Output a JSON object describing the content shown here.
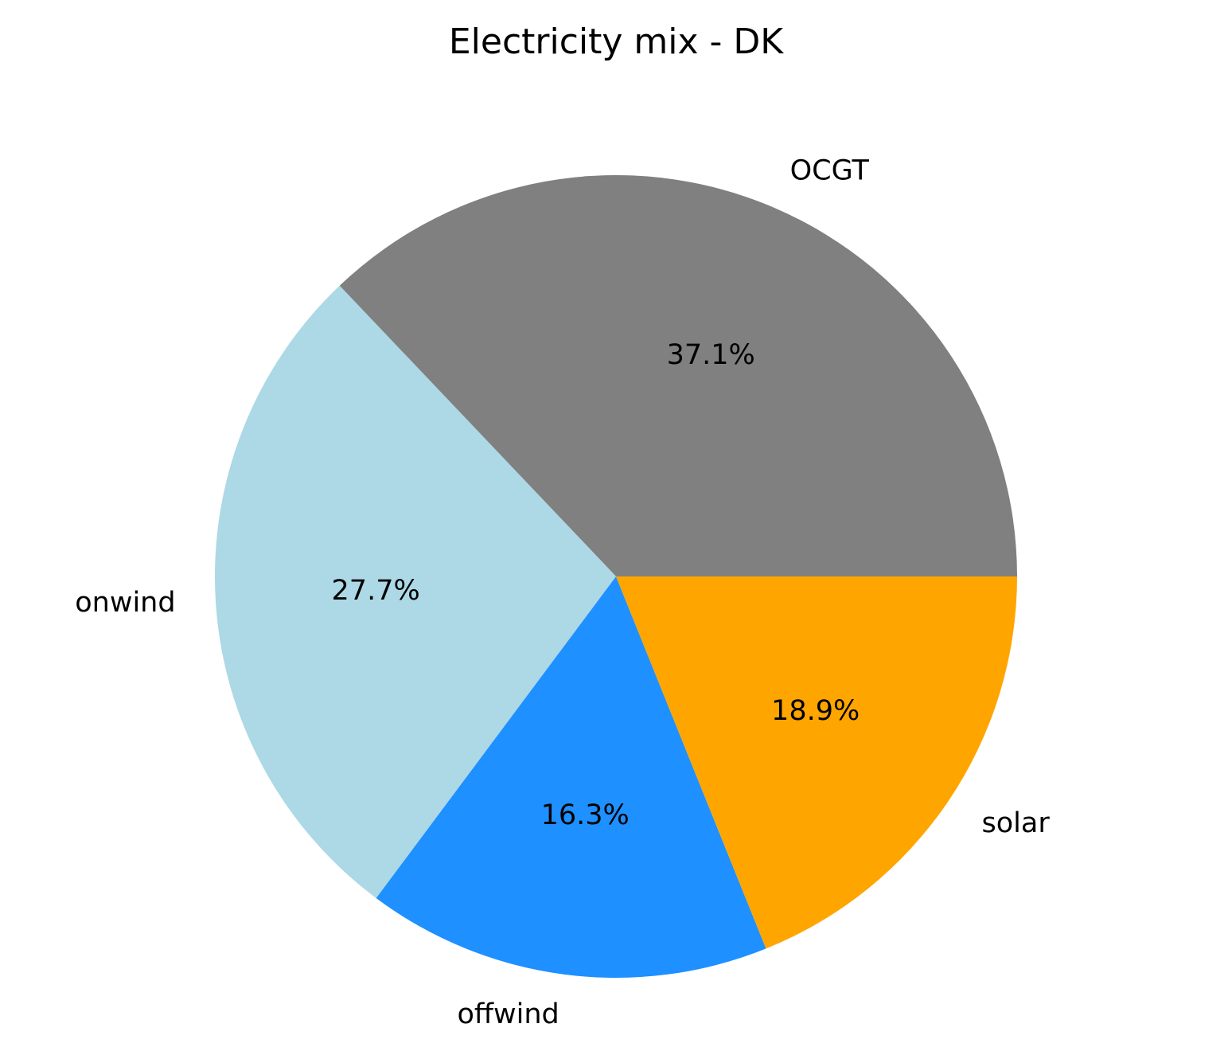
{
  "chart_data": {
    "type": "pie",
    "title": "Electricity mix - DK",
    "slices": [
      {
        "label": "OCGT",
        "value": 37.1,
        "pct_label": "37.1%",
        "color": "#808080"
      },
      {
        "label": "onwind",
        "value": 27.7,
        "pct_label": "27.7%",
        "color": "#add8e6"
      },
      {
        "label": "offwind",
        "value": 16.3,
        "pct_label": "16.3%",
        "color": "#1e90ff"
      },
      {
        "label": "solar",
        "value": 18.9,
        "pct_label": "18.9%",
        "color": "#ffa500"
      }
    ],
    "start_angle_deg": 0,
    "direction": "counterclockwise",
    "legend": "none"
  }
}
